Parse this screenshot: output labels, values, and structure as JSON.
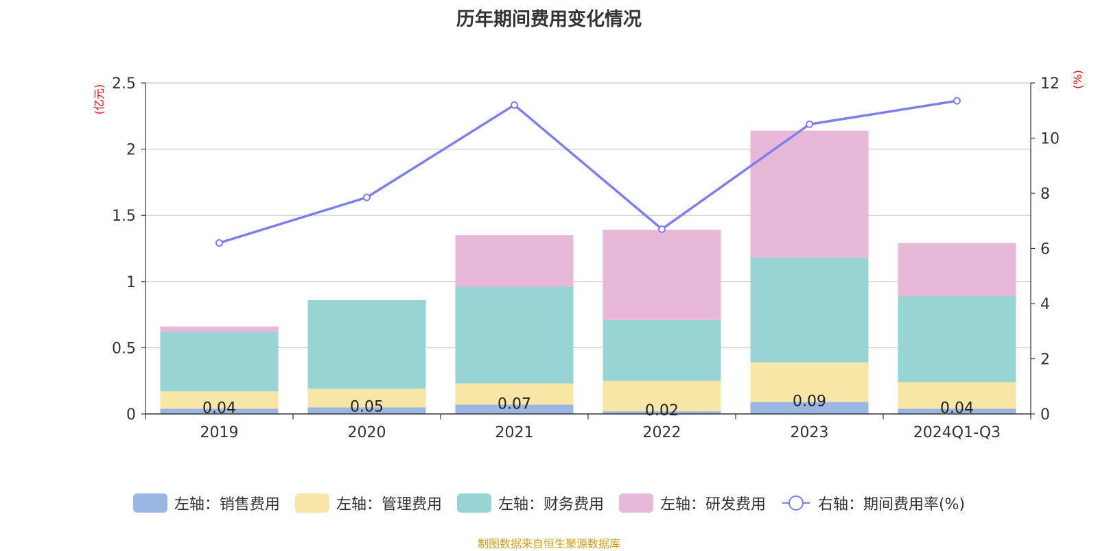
{
  "chart_data": {
    "type": "bar",
    "title": "历年期间费用变化情况",
    "categories": [
      "2019",
      "2020",
      "2021",
      "2022",
      "2023",
      "2024Q1-Q3"
    ],
    "left_axis": {
      "unit": "(亿元)",
      "ylim": [
        0,
        2.5
      ],
      "ticks": [
        0,
        0.5,
        1,
        1.5,
        2,
        2.5
      ],
      "tick_labels": [
        "0",
        "0.5",
        "1",
        "1.5",
        "2",
        "2.5"
      ]
    },
    "right_axis": {
      "unit": "(%)",
      "ylim": [
        0,
        12
      ],
      "ticks": [
        0,
        2,
        4,
        6,
        8,
        10,
        12
      ]
    },
    "grid": true,
    "stacked": true,
    "series": [
      {
        "name": "左轴：销售费用",
        "kind": "bar",
        "axis": "left",
        "color": "#9bb6e2",
        "values": [
          0.04,
          0.05,
          0.07,
          0.02,
          0.09,
          0.04
        ],
        "labels": [
          "0.04",
          "0.05",
          "0.07",
          "0.02",
          "0.09",
          "0.04"
        ]
      },
      {
        "name": "左轴：管理费用",
        "kind": "bar",
        "axis": "left",
        "color": "#f7e6a6",
        "values": [
          0.13,
          0.14,
          0.16,
          0.23,
          0.3,
          0.2
        ]
      },
      {
        "name": "左轴：财务费用",
        "kind": "bar",
        "axis": "left",
        "color": "#98d4d4",
        "values": [
          0.45,
          0.67,
          0.73,
          0.46,
          0.79,
          0.65
        ]
      },
      {
        "name": "左轴：研发费用",
        "kind": "bar",
        "axis": "left",
        "color": "#e8b8d8",
        "values": [
          0.04,
          0.0,
          0.39,
          0.68,
          0.96,
          0.4
        ]
      },
      {
        "name": "右轴：期间费用率(%)",
        "kind": "line",
        "axis": "right",
        "color": "#7b7ff0",
        "values": [
          6.2,
          7.85,
          11.2,
          6.7,
          10.5,
          11.35
        ]
      }
    ],
    "legend_position": "bottom"
  },
  "source_note": "制图数据来自恒生聚源数据库",
  "colors": {
    "axis_unit": "#ff0000",
    "source_note": "#d4a017",
    "grid": "#cccccc",
    "text": "#333333"
  }
}
